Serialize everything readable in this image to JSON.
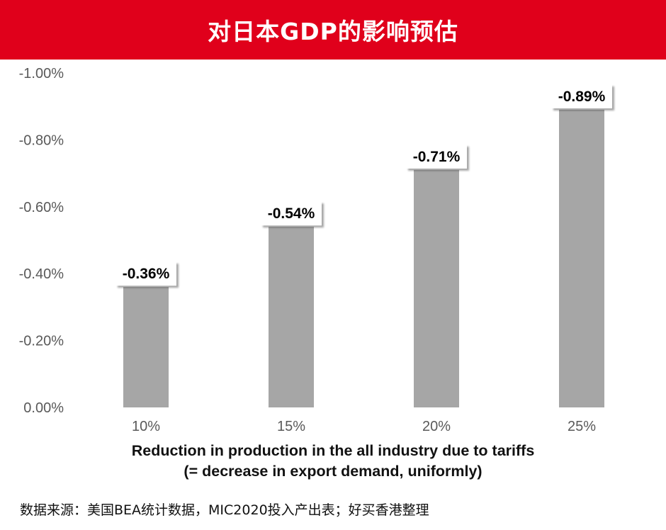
{
  "title": "对日本GDP的影响预估",
  "source": "数据来源：美国BEA统计数据，MIC2020投入产出表；好买香港整理",
  "colors": {
    "title_bg": "#e0001b",
    "bar": "#a6a6a6"
  },
  "chart_data": {
    "type": "bar",
    "title": "对日本GDP的影响预估",
    "categories": [
      "10%",
      "15%",
      "20%",
      "25%"
    ],
    "values": [
      -0.36,
      -0.54,
      -0.71,
      -0.89
    ],
    "value_labels": [
      "-0.36%",
      "-0.54%",
      "-0.71%",
      "-0.89%"
    ],
    "ylim": [
      0,
      -1.0
    ],
    "yticks": [
      0,
      -0.2,
      -0.4,
      -0.6,
      -0.8,
      -1.0
    ],
    "ytick_labels": [
      "0.00%",
      "-0.20%",
      "-0.40%",
      "-0.60%",
      "-0.80%",
      "-1.00%"
    ],
    "xlabel": [
      "Reduction in production in the all industry due to tariffs",
      "(= decrease in export demand, uniformly)"
    ],
    "ylabel": "",
    "grid": false,
    "legend": "none"
  }
}
